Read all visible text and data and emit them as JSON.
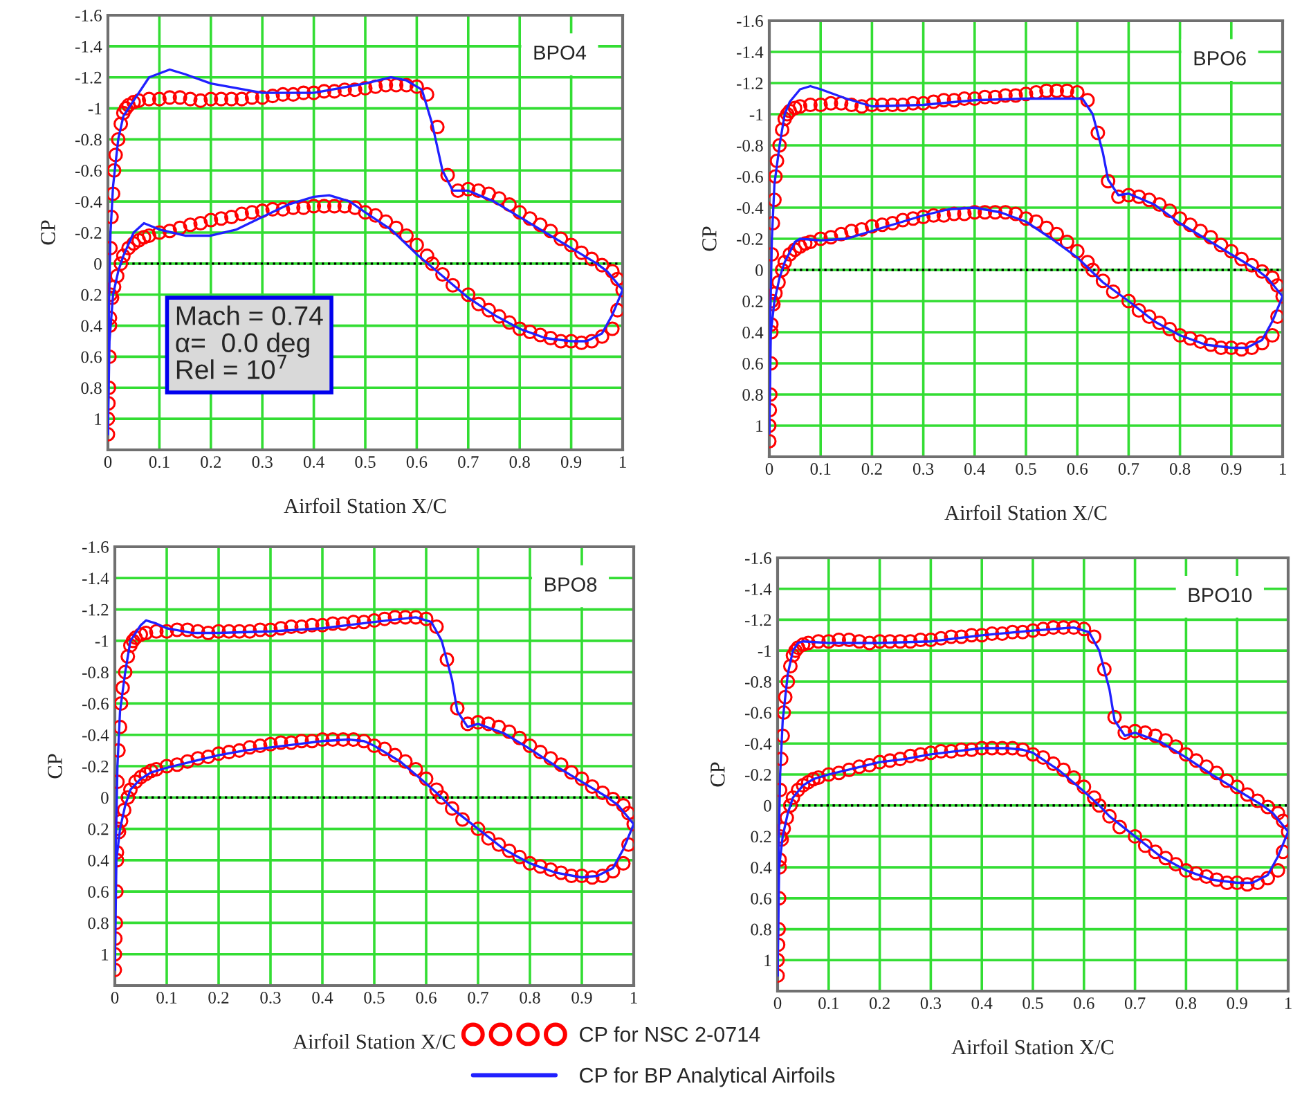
{
  "chart_data": [
    {
      "type": "line",
      "xlabel": "Airfoil Station X/C",
      "ylabel": "CP",
      "annotations": [
        "BPO4",
        "Mach = 0.74\nα=  0.0 deg\nRel = 10$^{7}$"
      ],
      "xlim": [
        0,
        1
      ],
      "ylim": [
        1.2,
        -1.6
      ],
      "xticks": [
        0,
        0.1,
        0.2,
        0.3,
        0.4,
        0.5,
        0.6,
        0.7,
        0.8,
        0.9,
        1
      ],
      "yticks": [
        -1.6,
        -1.4,
        -1.2,
        -1,
        -0.8,
        -0.6,
        -0.4,
        -0.2,
        0,
        0.2,
        0.4,
        0.6,
        0.8,
        1
      ],
      "grid": true,
      "ref_lines": [
        {
          "axis": "y",
          "value": 0,
          "color": "#000000",
          "line_style": "dotted"
        }
      ],
      "series": [
        {
          "type": "scatter",
          "marker": "circle",
          "color": "#ff0000",
          "x": [
            0,
            0,
            0.001,
            0.002,
            0.003,
            0.004,
            0.005,
            0.005,
            0.007,
            0.01,
            0.012,
            0.015,
            0.02,
            0.025,
            0.03,
            0.035,
            0.04,
            0.05,
            0.06,
            0.08,
            0.1,
            0.12,
            0.14,
            0.16,
            0.18,
            0.2,
            0.22,
            0.24,
            0.26,
            0.28,
            0.3,
            0.32,
            0.34,
            0.36,
            0.38,
            0.4,
            0.42,
            0.44,
            0.46,
            0.48,
            0.5,
            0.52,
            0.54,
            0.56,
            0.58,
            0.6,
            0.62,
            0.64,
            0.66,
            0.68,
            0.7,
            0.72,
            0.74,
            0.76,
            0.78,
            0.8,
            0.82,
            0.84,
            0.86,
            0.88,
            0.9,
            0.92,
            0.94,
            0.96,
            0.98,
            0.99,
            1,
            0.004,
            0.008,
            0.012,
            0.018,
            0.025,
            0.03,
            0.04,
            0.05,
            0.06,
            0.07,
            0.08,
            0.1,
            0.12,
            0.14,
            0.16,
            0.18,
            0.2,
            0.22,
            0.24,
            0.26,
            0.28,
            0.3,
            0.32,
            0.34,
            0.36,
            0.38,
            0.4,
            0.42,
            0.44,
            0.46,
            0.48,
            0.5,
            0.52,
            0.54,
            0.56,
            0.58,
            0.6,
            0.62,
            0.63,
            0.65,
            0.67,
            0.7,
            0.72,
            0.74,
            0.76,
            0.78,
            0.8,
            0.82,
            0.84,
            0.86,
            0.88,
            0.9,
            0.92,
            0.94,
            0.96,
            0.98,
            0.99
          ],
          "values": [
            1.1,
            1.0,
            0.9,
            0.8,
            0.6,
            0.4,
            0.2,
            -0.1,
            -0.3,
            -0.45,
            -0.6,
            -0.7,
            -0.8,
            -0.9,
            -0.97,
            -1.0,
            -1.02,
            -1.04,
            -1.05,
            -1.06,
            -1.06,
            -1.07,
            -1.07,
            -1.06,
            -1.05,
            -1.06,
            -1.06,
            -1.06,
            -1.06,
            -1.07,
            -1.07,
            -1.08,
            -1.09,
            -1.09,
            -1.1,
            -1.1,
            -1.11,
            -1.11,
            -1.12,
            -1.12,
            -1.13,
            -1.14,
            -1.15,
            -1.15,
            -1.15,
            -1.14,
            -1.09,
            -0.88,
            -0.57,
            -0.47,
            -0.48,
            -0.47,
            -0.45,
            -0.42,
            -0.38,
            -0.33,
            -0.29,
            -0.25,
            -0.21,
            -0.16,
            -0.12,
            -0.07,
            -0.03,
            0.01,
            0.05,
            0.1,
            0.17,
            0.35,
            0.22,
            0.15,
            0.08,
            0.0,
            -0.05,
            -0.1,
            -0.13,
            -0.15,
            -0.17,
            -0.18,
            -0.2,
            -0.21,
            -0.23,
            -0.25,
            -0.26,
            -0.28,
            -0.29,
            -0.3,
            -0.32,
            -0.33,
            -0.34,
            -0.35,
            -0.35,
            -0.36,
            -0.36,
            -0.37,
            -0.37,
            -0.37,
            -0.37,
            -0.36,
            -0.33,
            -0.31,
            -0.27,
            -0.23,
            -0.18,
            -0.12,
            -0.05,
            0.0,
            0.07,
            0.14,
            0.2,
            0.26,
            0.3,
            0.34,
            0.38,
            0.42,
            0.44,
            0.46,
            0.48,
            0.5,
            0.5,
            0.51,
            0.5,
            0.47,
            0.42,
            0.3
          ]
        },
        {
          "type": "line",
          "color": "#2020ff",
          "x": [
            0,
            0.002,
            0.005,
            0.01,
            0.02,
            0.03,
            0.05,
            0.08,
            0.12,
            0.15,
            0.2,
            0.3,
            0.4,
            0.5,
            0.55,
            0.58,
            0.61,
            0.63,
            0.65,
            0.67,
            0.7,
            0.75,
            0.8,
            0.85,
            0.9,
            0.95,
            0.97,
            1
          ],
          "values": [
            1.1,
            0.3,
            -0.2,
            -0.5,
            -0.8,
            -0.95,
            -1.05,
            -1.2,
            -1.25,
            -1.22,
            -1.16,
            -1.1,
            -1.1,
            -1.16,
            -1.2,
            -1.18,
            -1.12,
            -0.9,
            -0.6,
            -0.47,
            -0.47,
            -0.4,
            -0.3,
            -0.2,
            -0.1,
            0,
            0.05,
            0.17
          ]
        },
        {
          "type": "line",
          "color": "#2020ff",
          "x": [
            0,
            0.003,
            0.01,
            0.02,
            0.03,
            0.05,
            0.07,
            0.1,
            0.15,
            0.2,
            0.25,
            0.3,
            0.35,
            0.4,
            0.43,
            0.47,
            0.5,
            0.55,
            0.6,
            0.65,
            0.7,
            0.75,
            0.8,
            0.85,
            0.9,
            0.93,
            0.96,
            0.98,
            1
          ],
          "values": [
            1.1,
            0.5,
            0.2,
            0.05,
            -0.05,
            -0.2,
            -0.26,
            -0.22,
            -0.18,
            -0.18,
            -0.22,
            -0.3,
            -0.38,
            -0.43,
            -0.44,
            -0.4,
            -0.33,
            -0.22,
            -0.06,
            0.08,
            0.22,
            0.33,
            0.42,
            0.48,
            0.5,
            0.5,
            0.45,
            0.33,
            0.17
          ]
        }
      ]
    },
    {
      "type": "line",
      "xlabel": "Airfoil Station X/C",
      "ylabel": "CP",
      "annotations": [
        "BPO6"
      ],
      "xlim": [
        0,
        1
      ],
      "ylim": [
        1.2,
        -1.6
      ],
      "xticks": [
        0,
        0.1,
        0.2,
        0.3,
        0.4,
        0.5,
        0.6,
        0.7,
        0.8,
        0.9,
        1
      ],
      "yticks": [
        -1.6,
        -1.4,
        -1.2,
        -1,
        -0.8,
        -0.6,
        -0.4,
        -0.2,
        0,
        0.2,
        0.4,
        0.6,
        0.8,
        1
      ],
      "grid": true,
      "ref_lines": [
        {
          "axis": "y",
          "value": 0,
          "color": "#000000",
          "line_style": "dotted"
        }
      ],
      "series": [
        {
          "type": "scatter",
          "marker": "circle",
          "color": "#ff0000",
          "x": [
            0,
            0,
            0.001,
            0.002,
            0.003,
            0.004,
            0.005,
            0.005,
            0.007,
            0.01,
            0.012,
            0.015,
            0.02,
            0.025,
            0.03,
            0.035,
            0.04,
            0.05,
            0.06,
            0.08,
            0.1,
            0.12,
            0.14,
            0.16,
            0.18,
            0.2,
            0.22,
            0.24,
            0.26,
            0.28,
            0.3,
            0.32,
            0.34,
            0.36,
            0.38,
            0.4,
            0.42,
            0.44,
            0.46,
            0.48,
            0.5,
            0.52,
            0.54,
            0.56,
            0.58,
            0.6,
            0.62,
            0.64,
            0.66,
            0.68,
            0.7,
            0.72,
            0.74,
            0.76,
            0.78,
            0.8,
            0.82,
            0.84,
            0.86,
            0.88,
            0.9,
            0.92,
            0.94,
            0.96,
            0.98,
            0.99,
            1,
            0.004,
            0.008,
            0.012,
            0.018,
            0.025,
            0.03,
            0.04,
            0.05,
            0.06,
            0.07,
            0.08,
            0.1,
            0.12,
            0.14,
            0.16,
            0.18,
            0.2,
            0.22,
            0.24,
            0.26,
            0.28,
            0.3,
            0.32,
            0.34,
            0.36,
            0.38,
            0.4,
            0.42,
            0.44,
            0.46,
            0.48,
            0.5,
            0.52,
            0.54,
            0.56,
            0.58,
            0.6,
            0.62,
            0.63,
            0.65,
            0.67,
            0.7,
            0.72,
            0.74,
            0.76,
            0.78,
            0.8,
            0.82,
            0.84,
            0.86,
            0.88,
            0.9,
            0.92,
            0.94,
            0.96,
            0.98,
            0.99
          ],
          "values": [
            1.1,
            1.0,
            0.9,
            0.8,
            0.6,
            0.4,
            0.2,
            -0.1,
            -0.3,
            -0.45,
            -0.6,
            -0.7,
            -0.8,
            -0.9,
            -0.97,
            -1.0,
            -1.02,
            -1.04,
            -1.05,
            -1.06,
            -1.06,
            -1.07,
            -1.07,
            -1.06,
            -1.05,
            -1.06,
            -1.06,
            -1.06,
            -1.06,
            -1.07,
            -1.07,
            -1.08,
            -1.09,
            -1.09,
            -1.1,
            -1.1,
            -1.11,
            -1.11,
            -1.12,
            -1.12,
            -1.13,
            -1.14,
            -1.15,
            -1.15,
            -1.15,
            -1.14,
            -1.09,
            -0.88,
            -0.57,
            -0.47,
            -0.48,
            -0.47,
            -0.45,
            -0.42,
            -0.38,
            -0.33,
            -0.29,
            -0.25,
            -0.21,
            -0.16,
            -0.12,
            -0.07,
            -0.03,
            0.01,
            0.05,
            0.1,
            0.17,
            0.35,
            0.22,
            0.15,
            0.08,
            0.0,
            -0.05,
            -0.1,
            -0.13,
            -0.15,
            -0.17,
            -0.18,
            -0.2,
            -0.21,
            -0.23,
            -0.25,
            -0.26,
            -0.28,
            -0.29,
            -0.3,
            -0.32,
            -0.33,
            -0.34,
            -0.35,
            -0.35,
            -0.36,
            -0.36,
            -0.37,
            -0.37,
            -0.37,
            -0.37,
            -0.36,
            -0.33,
            -0.31,
            -0.27,
            -0.23,
            -0.18,
            -0.12,
            -0.05,
            0.0,
            0.07,
            0.14,
            0.2,
            0.26,
            0.3,
            0.34,
            0.38,
            0.42,
            0.44,
            0.46,
            0.48,
            0.5,
            0.5,
            0.51,
            0.5,
            0.47,
            0.42,
            0.3
          ]
        },
        {
          "type": "line",
          "color": "#2020ff",
          "x": [
            0,
            0.002,
            0.005,
            0.01,
            0.02,
            0.03,
            0.04,
            0.06,
            0.08,
            0.1,
            0.15,
            0.2,
            0.3,
            0.4,
            0.5,
            0.6,
            0.61,
            0.63,
            0.65,
            0.66,
            0.68,
            0.7,
            0.75,
            0.8,
            0.85,
            0.9,
            0.95,
            0.97,
            1
          ],
          "values": [
            1.05,
            0.3,
            -0.2,
            -0.55,
            -0.8,
            -1.0,
            -1.08,
            -1.16,
            -1.18,
            -1.16,
            -1.1,
            -1.05,
            -1.06,
            -1.09,
            -1.1,
            -1.1,
            -1.1,
            -1.0,
            -0.75,
            -0.58,
            -0.48,
            -0.49,
            -0.42,
            -0.3,
            -0.2,
            -0.1,
            0,
            0.05,
            0.17
          ]
        },
        {
          "type": "line",
          "color": "#2020ff",
          "x": [
            0,
            0.003,
            0.01,
            0.02,
            0.03,
            0.05,
            0.06,
            0.1,
            0.15,
            0.2,
            0.25,
            0.3,
            0.35,
            0.4,
            0.45,
            0.5,
            0.55,
            0.6,
            0.65,
            0.7,
            0.75,
            0.8,
            0.85,
            0.9,
            0.93,
            0.96,
            0.98,
            1
          ],
          "values": [
            1.05,
            0.4,
            0.2,
            0.05,
            -0.05,
            -0.18,
            -0.2,
            -0.19,
            -0.2,
            -0.25,
            -0.3,
            -0.35,
            -0.39,
            -0.4,
            -0.37,
            -0.31,
            -0.2,
            -0.08,
            0.08,
            0.2,
            0.33,
            0.42,
            0.48,
            0.5,
            0.5,
            0.45,
            0.33,
            0.17
          ]
        }
      ]
    },
    {
      "type": "line",
      "xlabel": "Airfoil Station X/C",
      "ylabel": "CP",
      "annotations": [
        "BPO8"
      ],
      "xlim": [
        0,
        1
      ],
      "ylim": [
        1.2,
        -1.6
      ],
      "xticks": [
        0,
        0.1,
        0.2,
        0.3,
        0.4,
        0.5,
        0.6,
        0.7,
        0.8,
        0.9,
        1
      ],
      "yticks": [
        -1.6,
        -1.4,
        -1.2,
        -1,
        -0.8,
        -0.6,
        -0.4,
        -0.2,
        0,
        0.2,
        0.4,
        0.6,
        0.8,
        1
      ],
      "grid": true,
      "legend": "bottom",
      "ref_lines": [
        {
          "axis": "y",
          "value": 0,
          "color": "#000000",
          "line_style": "dotted"
        }
      ],
      "series": [
        {
          "type": "scatter",
          "marker": "circle",
          "name": "CP for NSC 2-0714",
          "color": "#ff0000",
          "x": [
            0,
            0,
            0.001,
            0.002,
            0.003,
            0.004,
            0.005,
            0.005,
            0.007,
            0.01,
            0.012,
            0.015,
            0.02,
            0.025,
            0.03,
            0.035,
            0.04,
            0.05,
            0.06,
            0.08,
            0.1,
            0.12,
            0.14,
            0.16,
            0.18,
            0.2,
            0.22,
            0.24,
            0.26,
            0.28,
            0.3,
            0.32,
            0.34,
            0.36,
            0.38,
            0.4,
            0.42,
            0.44,
            0.46,
            0.48,
            0.5,
            0.52,
            0.54,
            0.56,
            0.58,
            0.6,
            0.62,
            0.64,
            0.66,
            0.68,
            0.7,
            0.72,
            0.74,
            0.76,
            0.78,
            0.8,
            0.82,
            0.84,
            0.86,
            0.88,
            0.9,
            0.92,
            0.94,
            0.96,
            0.98,
            0.99,
            1,
            0.004,
            0.008,
            0.012,
            0.018,
            0.025,
            0.03,
            0.04,
            0.05,
            0.06,
            0.07,
            0.08,
            0.1,
            0.12,
            0.14,
            0.16,
            0.18,
            0.2,
            0.22,
            0.24,
            0.26,
            0.28,
            0.3,
            0.32,
            0.34,
            0.36,
            0.38,
            0.4,
            0.42,
            0.44,
            0.46,
            0.48,
            0.5,
            0.52,
            0.54,
            0.56,
            0.58,
            0.6,
            0.62,
            0.63,
            0.65,
            0.67,
            0.7,
            0.72,
            0.74,
            0.76,
            0.78,
            0.8,
            0.82,
            0.84,
            0.86,
            0.88,
            0.9,
            0.92,
            0.94,
            0.96,
            0.98,
            0.99
          ],
          "values": [
            1.1,
            1.0,
            0.9,
            0.8,
            0.6,
            0.4,
            0.2,
            -0.1,
            -0.3,
            -0.45,
            -0.6,
            -0.7,
            -0.8,
            -0.9,
            -0.97,
            -1.0,
            -1.02,
            -1.04,
            -1.05,
            -1.06,
            -1.06,
            -1.07,
            -1.07,
            -1.06,
            -1.05,
            -1.06,
            -1.06,
            -1.06,
            -1.06,
            -1.07,
            -1.07,
            -1.08,
            -1.09,
            -1.09,
            -1.1,
            -1.1,
            -1.11,
            -1.11,
            -1.12,
            -1.12,
            -1.13,
            -1.14,
            -1.15,
            -1.15,
            -1.15,
            -1.14,
            -1.09,
            -0.88,
            -0.57,
            -0.47,
            -0.48,
            -0.47,
            -0.45,
            -0.42,
            -0.38,
            -0.33,
            -0.29,
            -0.25,
            -0.21,
            -0.16,
            -0.12,
            -0.07,
            -0.03,
            0.01,
            0.05,
            0.1,
            0.17,
            0.35,
            0.22,
            0.15,
            0.08,
            0.0,
            -0.05,
            -0.1,
            -0.13,
            -0.15,
            -0.17,
            -0.18,
            -0.2,
            -0.21,
            -0.23,
            -0.25,
            -0.26,
            -0.28,
            -0.29,
            -0.3,
            -0.32,
            -0.33,
            -0.34,
            -0.35,
            -0.35,
            -0.36,
            -0.36,
            -0.37,
            -0.37,
            -0.37,
            -0.37,
            -0.36,
            -0.33,
            -0.31,
            -0.27,
            -0.23,
            -0.18,
            -0.12,
            -0.05,
            0.0,
            0.07,
            0.14,
            0.2,
            0.26,
            0.3,
            0.34,
            0.38,
            0.42,
            0.44,
            0.46,
            0.48,
            0.5,
            0.5,
            0.51,
            0.5,
            0.47,
            0.42,
            0.3
          ]
        },
        {
          "type": "line",
          "name": "CP for BP Analytical Airfoils",
          "color": "#2020ff",
          "x": [
            0,
            0.002,
            0.005,
            0.01,
            0.02,
            0.03,
            0.05,
            0.06,
            0.08,
            0.1,
            0.15,
            0.2,
            0.3,
            0.4,
            0.5,
            0.58,
            0.61,
            0.63,
            0.65,
            0.66,
            0.68,
            0.7,
            0.75,
            0.8,
            0.85,
            0.9,
            0.95,
            0.97,
            1
          ],
          "values": [
            1.1,
            0.3,
            -0.2,
            -0.55,
            -0.8,
            -1.0,
            -1.1,
            -1.13,
            -1.11,
            -1.08,
            -1.05,
            -1.05,
            -1.06,
            -1.08,
            -1.12,
            -1.15,
            -1.12,
            -1.0,
            -0.75,
            -0.55,
            -0.45,
            -0.47,
            -0.41,
            -0.31,
            -0.2,
            -0.1,
            0.0,
            0.05,
            0.17
          ]
        },
        {
          "type": "line",
          "color": "#2020ff",
          "x": [
            0,
            0.003,
            0.01,
            0.02,
            0.03,
            0.05,
            0.07,
            0.1,
            0.15,
            0.2,
            0.25,
            0.3,
            0.35,
            0.4,
            0.45,
            0.48,
            0.5,
            0.55,
            0.6,
            0.63,
            0.65,
            0.7,
            0.75,
            0.8,
            0.85,
            0.9,
            0.93,
            0.96,
            0.98,
            1
          ],
          "values": [
            1.1,
            0.4,
            0.2,
            0.05,
            -0.05,
            -0.12,
            -0.16,
            -0.19,
            -0.23,
            -0.27,
            -0.3,
            -0.32,
            -0.34,
            -0.36,
            -0.37,
            -0.36,
            -0.33,
            -0.23,
            -0.09,
            0,
            0.07,
            0.2,
            0.33,
            0.42,
            0.48,
            0.51,
            0.5,
            0.45,
            0.33,
            0.17
          ]
        }
      ]
    },
    {
      "type": "line",
      "xlabel": "Airfoil Station X/C",
      "ylabel": "CP",
      "annotations": [
        "BPO10"
      ],
      "xlim": [
        0,
        1
      ],
      "ylim": [
        1.2,
        -1.6
      ],
      "xticks": [
        0,
        0.1,
        0.2,
        0.3,
        0.4,
        0.5,
        0.6,
        0.7,
        0.8,
        0.9,
        1
      ],
      "yticks": [
        -1.6,
        -1.4,
        -1.2,
        -1,
        -0.8,
        -0.6,
        -0.4,
        -0.2,
        0,
        0.2,
        0.4,
        0.6,
        0.8,
        1
      ],
      "grid": true,
      "ref_lines": [
        {
          "axis": "y",
          "value": 0,
          "color": "#000000",
          "line_style": "dotted"
        }
      ],
      "series": [
        {
          "type": "scatter",
          "marker": "circle",
          "color": "#ff0000",
          "x": [
            0,
            0,
            0.001,
            0.002,
            0.003,
            0.004,
            0.005,
            0.005,
            0.007,
            0.01,
            0.012,
            0.015,
            0.02,
            0.025,
            0.03,
            0.035,
            0.04,
            0.05,
            0.06,
            0.08,
            0.1,
            0.12,
            0.14,
            0.16,
            0.18,
            0.2,
            0.22,
            0.24,
            0.26,
            0.28,
            0.3,
            0.32,
            0.34,
            0.36,
            0.38,
            0.4,
            0.42,
            0.44,
            0.46,
            0.48,
            0.5,
            0.52,
            0.54,
            0.56,
            0.58,
            0.6,
            0.62,
            0.64,
            0.66,
            0.68,
            0.7,
            0.72,
            0.74,
            0.76,
            0.78,
            0.8,
            0.82,
            0.84,
            0.86,
            0.88,
            0.9,
            0.92,
            0.94,
            0.96,
            0.98,
            0.99,
            1,
            0.004,
            0.008,
            0.012,
            0.018,
            0.025,
            0.03,
            0.04,
            0.05,
            0.06,
            0.07,
            0.08,
            0.1,
            0.12,
            0.14,
            0.16,
            0.18,
            0.2,
            0.22,
            0.24,
            0.26,
            0.28,
            0.3,
            0.32,
            0.34,
            0.36,
            0.38,
            0.4,
            0.42,
            0.44,
            0.46,
            0.48,
            0.5,
            0.52,
            0.54,
            0.56,
            0.58,
            0.6,
            0.62,
            0.63,
            0.65,
            0.67,
            0.7,
            0.72,
            0.74,
            0.76,
            0.78,
            0.8,
            0.82,
            0.84,
            0.86,
            0.88,
            0.9,
            0.92,
            0.94,
            0.96,
            0.98,
            0.99
          ],
          "values": [
            1.1,
            1.0,
            0.9,
            0.8,
            0.6,
            0.4,
            0.2,
            -0.1,
            -0.3,
            -0.45,
            -0.6,
            -0.7,
            -0.8,
            -0.9,
            -0.97,
            -1.0,
            -1.02,
            -1.04,
            -1.05,
            -1.06,
            -1.06,
            -1.07,
            -1.07,
            -1.06,
            -1.05,
            -1.06,
            -1.06,
            -1.06,
            -1.06,
            -1.07,
            -1.07,
            -1.08,
            -1.09,
            -1.09,
            -1.1,
            -1.1,
            -1.11,
            -1.11,
            -1.12,
            -1.12,
            -1.13,
            -1.14,
            -1.15,
            -1.15,
            -1.15,
            -1.14,
            -1.09,
            -0.88,
            -0.57,
            -0.47,
            -0.48,
            -0.47,
            -0.45,
            -0.42,
            -0.38,
            -0.33,
            -0.29,
            -0.25,
            -0.21,
            -0.16,
            -0.12,
            -0.07,
            -0.03,
            0.01,
            0.05,
            0.1,
            0.17,
            0.35,
            0.22,
            0.15,
            0.08,
            0.0,
            -0.05,
            -0.1,
            -0.13,
            -0.15,
            -0.17,
            -0.18,
            -0.2,
            -0.21,
            -0.23,
            -0.25,
            -0.26,
            -0.28,
            -0.29,
            -0.3,
            -0.32,
            -0.33,
            -0.34,
            -0.35,
            -0.35,
            -0.36,
            -0.36,
            -0.37,
            -0.37,
            -0.37,
            -0.37,
            -0.36,
            -0.33,
            -0.31,
            -0.27,
            -0.23,
            -0.18,
            -0.12,
            -0.05,
            0.0,
            0.07,
            0.14,
            0.2,
            0.26,
            0.3,
            0.34,
            0.38,
            0.42,
            0.44,
            0.46,
            0.48,
            0.5,
            0.5,
            0.51,
            0.5,
            0.47,
            0.42,
            0.3
          ]
        },
        {
          "type": "line",
          "color": "#2020ff",
          "x": [
            0,
            0.002,
            0.005,
            0.01,
            0.02,
            0.03,
            0.04,
            0.05,
            0.1,
            0.2,
            0.3,
            0.4,
            0.5,
            0.58,
            0.61,
            0.63,
            0.65,
            0.66,
            0.68,
            0.7,
            0.75,
            0.8,
            0.85,
            0.9,
            0.95,
            0.97,
            1
          ],
          "values": [
            1.1,
            0.3,
            -0.2,
            -0.55,
            -0.85,
            -1.0,
            -1.05,
            -1.06,
            -1.05,
            -1.05,
            -1.06,
            -1.1,
            -1.13,
            -1.15,
            -1.12,
            -1.0,
            -0.75,
            -0.55,
            -0.45,
            -0.47,
            -0.41,
            -0.31,
            -0.2,
            -0.1,
            0,
            0.05,
            0.17
          ]
        },
        {
          "type": "line",
          "color": "#2020ff",
          "x": [
            0,
            0.003,
            0.01,
            0.02,
            0.03,
            0.05,
            0.07,
            0.1,
            0.15,
            0.2,
            0.25,
            0.3,
            0.35,
            0.4,
            0.45,
            0.48,
            0.5,
            0.55,
            0.6,
            0.63,
            0.65,
            0.7,
            0.75,
            0.8,
            0.85,
            0.9,
            0.93,
            0.96,
            0.98,
            1
          ],
          "values": [
            1.1,
            0.4,
            0.2,
            0.05,
            -0.05,
            -0.13,
            -0.17,
            -0.2,
            -0.24,
            -0.28,
            -0.3,
            -0.33,
            -0.35,
            -0.37,
            -0.37,
            -0.36,
            -0.34,
            -0.23,
            -0.09,
            0,
            0.07,
            0.2,
            0.33,
            0.42,
            0.48,
            0.5,
            0.5,
            0.45,
            0.33,
            0.17
          ]
        }
      ]
    }
  ]
}
